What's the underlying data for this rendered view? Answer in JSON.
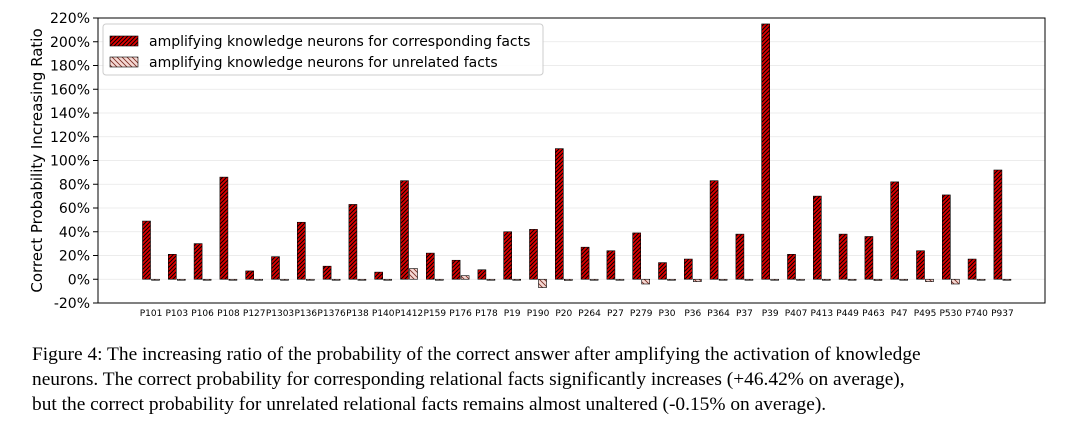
{
  "chart_data": {
    "type": "bar",
    "title": "",
    "xlabel": "",
    "ylabel": "Correct Probability Increasing Ratio",
    "ylim": [
      -20,
      220
    ],
    "yticks": [
      "-20%",
      "0%",
      "20%",
      "40%",
      "60%",
      "80%",
      "100%",
      "120%",
      "140%",
      "160%",
      "180%",
      "200%",
      "220%"
    ],
    "grid": true,
    "legend_position": "top-left",
    "categories": [
      "P101",
      "P103",
      "P106",
      "P108",
      "P127",
      "P1303",
      "P136",
      "P1376",
      "P138",
      "P140",
      "P1412",
      "P159",
      "P176",
      "P178",
      "P19",
      "P190",
      "P20",
      "P264",
      "P27",
      "P279",
      "P30",
      "P36",
      "P364",
      "P37",
      "P39",
      "P407",
      "P413",
      "P449",
      "P463",
      "P47",
      "P495",
      "P530",
      "P740",
      "P937"
    ],
    "series": [
      {
        "name": "amplifying knowledge neurons for corresponding facts",
        "color": "#e00000",
        "hatch": "dense-diagonal",
        "values": [
          49,
          21,
          30,
          86,
          7,
          19,
          48,
          11,
          63,
          6,
          83,
          22,
          16,
          8,
          40,
          42,
          110,
          27,
          24,
          39,
          14,
          17,
          83,
          38,
          215,
          21,
          70,
          38,
          36,
          82,
          24,
          71,
          17,
          92
        ]
      },
      {
        "name": "amplifying knowledge neurons for unrelated facts",
        "color": "#f5d8d3",
        "hatch": "sparse-diagonal",
        "values": [
          0,
          0,
          0,
          0,
          0,
          0,
          0,
          0,
          0,
          0,
          9,
          0,
          3,
          0,
          0,
          -7,
          -1,
          0,
          0,
          -4,
          0,
          -2,
          0,
          0,
          0,
          0,
          0,
          0,
          -1,
          0,
          -2,
          -4,
          0,
          0
        ]
      }
    ]
  },
  "caption": {
    "line1": "Figure 4: The increasing ratio of the probability of the correct answer after amplifying the activation of knowledge",
    "line2": "neurons. The correct probability for corresponding relational facts significantly increases (+46.42% on average),",
    "line3": "but the correct probability for unrelated relational facts remains almost unaltered (-0.15% on average)."
  }
}
